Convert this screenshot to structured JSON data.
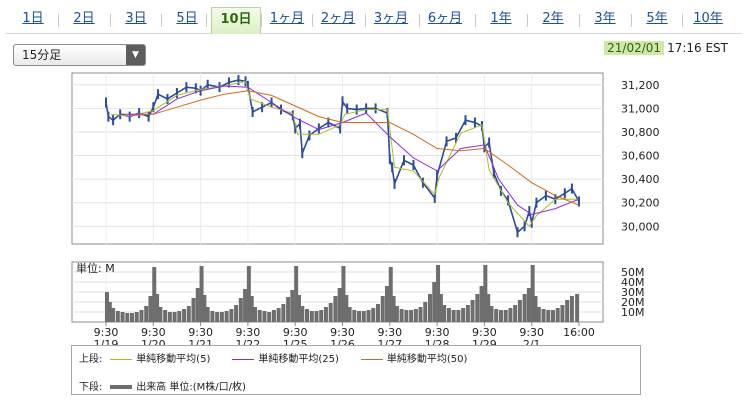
{
  "tabs": [
    "1日",
    "2日",
    "3日",
    "5日",
    "10日",
    "1ヶ月",
    "2ヶ月",
    "3ヶ月",
    "6ヶ月",
    "1年",
    "2年",
    "3年",
    "5年",
    "10年"
  ],
  "active_tab": "10日",
  "interval": "15分足",
  "timestamp": {
    "date": "21/02/01",
    "time": "17:16 EST"
  },
  "legend": {
    "upper_label": "上段:",
    "lower_label": "下段:",
    "ma": [
      {
        "label": "単純移動平均(5)",
        "color": "#a9c11f"
      },
      {
        "label": "単純移動平均(25)",
        "color": "#8a2be2"
      },
      {
        "label": "単純移動平均(50)",
        "color": "#d2691e"
      }
    ],
    "volume": {
      "label": "出来高 単位:(M株/口/枚)",
      "color": "#6e6e6e"
    }
  },
  "chart_data": [
    {
      "type": "line",
      "title": "",
      "x_dates": [
        "1/19",
        "1/20",
        "1/21",
        "1/22",
        "1/25",
        "1/26",
        "1/27",
        "1/28",
        "1/29",
        "2/1"
      ],
      "x_times": [
        "9:30",
        "9:30",
        "9:30",
        "9:30",
        "9:30",
        "9:30",
        "9:30",
        "9:30",
        "9:30",
        "9:30",
        "16:00"
      ],
      "ylim": [
        29850,
        31300
      ],
      "yticks": [
        "31,200",
        "31,000",
        "30,800",
        "30,600",
        "30,400",
        "30,200",
        "30,000"
      ],
      "series": [
        {
          "kind": "price",
          "color": "#2a4b9f",
          "x": [
            0,
            0.05,
            0.15,
            0.3,
            0.5,
            0.7,
            0.9,
            1.0,
            1.1,
            1.3,
            1.5,
            1.7,
            1.9,
            2.0,
            2.15,
            2.4,
            2.6,
            2.8,
            2.95,
            3.0,
            3.1,
            3.3,
            3.5,
            3.7,
            3.95,
            4.0,
            4.1,
            4.15,
            4.3,
            4.5,
            4.7,
            4.95,
            5.0,
            5.1,
            5.3,
            5.5,
            5.7,
            5.95,
            6.0,
            6.05,
            6.1,
            6.3,
            6.5,
            6.7,
            6.95,
            7.0,
            7.2,
            7.4,
            7.6,
            7.8,
            7.95,
            8.0,
            8.1,
            8.2,
            8.35,
            8.5,
            8.7,
            8.85,
            8.95,
            9.0,
            9.1,
            9.3,
            9.5,
            9.7,
            9.85,
            10.0
          ],
          "y": [
            31050,
            30930,
            30900,
            30950,
            30930,
            30960,
            30930,
            31010,
            31120,
            31080,
            31130,
            31180,
            31170,
            31150,
            31200,
            31180,
            31220,
            31240,
            31230,
            31190,
            30970,
            31010,
            31050,
            30990,
            30940,
            30830,
            30870,
            30620,
            30770,
            30830,
            30880,
            30830,
            31060,
            31000,
            30990,
            31000,
            31000,
            30960,
            30570,
            30500,
            30360,
            30560,
            30520,
            30370,
            30240,
            30430,
            30720,
            30750,
            30900,
            30880,
            30850,
            30670,
            30710,
            30450,
            30300,
            30220,
            29950,
            30000,
            30130,
            30030,
            30200,
            30260,
            30230,
            30280,
            30320,
            30210
          ]
        },
        {
          "name": "単純移動平均(5)",
          "color": "#a9c11f",
          "x": [
            0.1,
            0.5,
            1.0,
            1.5,
            2.0,
            2.5,
            2.95,
            3.05,
            3.5,
            3.95,
            4.05,
            4.5,
            4.95,
            5.05,
            5.5,
            5.95,
            6.1,
            6.5,
            6.95,
            7.05,
            7.5,
            7.95,
            8.1,
            8.5,
            8.95,
            9.1,
            9.5,
            10.0
          ],
          "y": [
            30950,
            30935,
            30980,
            31110,
            31160,
            31190,
            31230,
            31080,
            31010,
            30960,
            30780,
            30780,
            30860,
            30950,
            30990,
            30990,
            30500,
            30470,
            30270,
            30420,
            30790,
            30860,
            30480,
            30200,
            30000,
            30090,
            30230,
            30230
          ]
        },
        {
          "name": "単純移動平均(25)",
          "color": "#8a2be2",
          "x": [
            0.3,
            1.0,
            1.5,
            2.0,
            2.5,
            3.0,
            3.5,
            4.0,
            4.5,
            5.0,
            5.5,
            6.0,
            6.5,
            7.0,
            7.5,
            8.0,
            8.3,
            8.7,
            9.0,
            9.5,
            10.0
          ],
          "y": [
            30950,
            30950,
            31080,
            31150,
            31190,
            31180,
            31050,
            30920,
            30820,
            30880,
            30960,
            30760,
            30580,
            30470,
            30660,
            30690,
            30400,
            30180,
            30100,
            30150,
            30230
          ]
        },
        {
          "name": "単純移動平均(50)",
          "color": "#d2691e",
          "x": [
            0.5,
            1.0,
            1.5,
            2.0,
            2.5,
            3.0,
            3.5,
            4.0,
            4.5,
            5.0,
            5.5,
            6.0,
            6.5,
            7.0,
            7.5,
            8.0,
            8.5,
            9.0,
            9.5,
            10.0
          ],
          "y": [
            30940,
            30950,
            31010,
            31070,
            31120,
            31150,
            31110,
            31020,
            30930,
            30880,
            30880,
            30880,
            30780,
            30660,
            30640,
            30660,
            30520,
            30370,
            30260,
            30180
          ]
        }
      ]
    },
    {
      "type": "bar",
      "title": "",
      "ylabel": "単位: M",
      "ylim": [
        0,
        60
      ],
      "yticks": [
        "50M",
        "40M",
        "30M",
        "20M",
        "10M"
      ],
      "x_range": [
        0,
        10
      ],
      "series": [
        {
          "name": "出来高",
          "color": "#6e6e6e",
          "x": [
            0.02,
            0.08,
            0.15,
            0.25,
            0.35,
            0.45,
            0.55,
            0.65,
            0.75,
            0.85,
            0.94,
            1.02,
            1.08,
            1.15,
            1.25,
            1.35,
            1.45,
            1.55,
            1.65,
            1.75,
            1.85,
            1.94,
            2.02,
            2.08,
            2.15,
            2.25,
            2.35,
            2.45,
            2.55,
            2.65,
            2.75,
            2.85,
            2.94,
            3.02,
            3.08,
            3.15,
            3.25,
            3.35,
            3.45,
            3.55,
            3.65,
            3.75,
            3.85,
            3.94,
            4.02,
            4.08,
            4.15,
            4.25,
            4.35,
            4.45,
            4.55,
            4.65,
            4.75,
            4.85,
            4.94,
            5.02,
            5.08,
            5.15,
            5.25,
            5.35,
            5.45,
            5.55,
            5.65,
            5.75,
            5.85,
            5.94,
            6.02,
            6.08,
            6.15,
            6.25,
            6.35,
            6.45,
            6.55,
            6.65,
            6.75,
            6.85,
            6.94,
            7.02,
            7.08,
            7.15,
            7.25,
            7.35,
            7.45,
            7.55,
            7.65,
            7.75,
            7.85,
            7.94,
            8.02,
            8.08,
            8.15,
            8.25,
            8.35,
            8.45,
            8.55,
            8.65,
            8.75,
            8.85,
            8.94,
            9.02,
            9.08,
            9.15,
            9.25,
            9.35,
            9.45,
            9.55,
            9.65,
            9.75,
            9.85,
            9.96
          ],
          "values": [
            30,
            20,
            14,
            11,
            10,
            9,
            9,
            10,
            12,
            16,
            26,
            55,
            28,
            15,
            12,
            10,
            10,
            11,
            13,
            16,
            24,
            34,
            56,
            27,
            15,
            11,
            10,
            10,
            11,
            13,
            17,
            24,
            33,
            56,
            26,
            15,
            12,
            11,
            10,
            12,
            14,
            18,
            25,
            32,
            56,
            27,
            16,
            13,
            11,
            11,
            12,
            15,
            19,
            26,
            34,
            56,
            27,
            15,
            12,
            11,
            11,
            12,
            14,
            18,
            26,
            36,
            55,
            26,
            16,
            13,
            12,
            12,
            13,
            15,
            20,
            28,
            40,
            57,
            28,
            17,
            14,
            12,
            12,
            14,
            17,
            22,
            28,
            36,
            57,
            28,
            16,
            13,
            12,
            12,
            14,
            17,
            22,
            28,
            34,
            57,
            26,
            15,
            13,
            12,
            12,
            14,
            17,
            22,
            26,
            28
          ]
        }
      ]
    }
  ]
}
